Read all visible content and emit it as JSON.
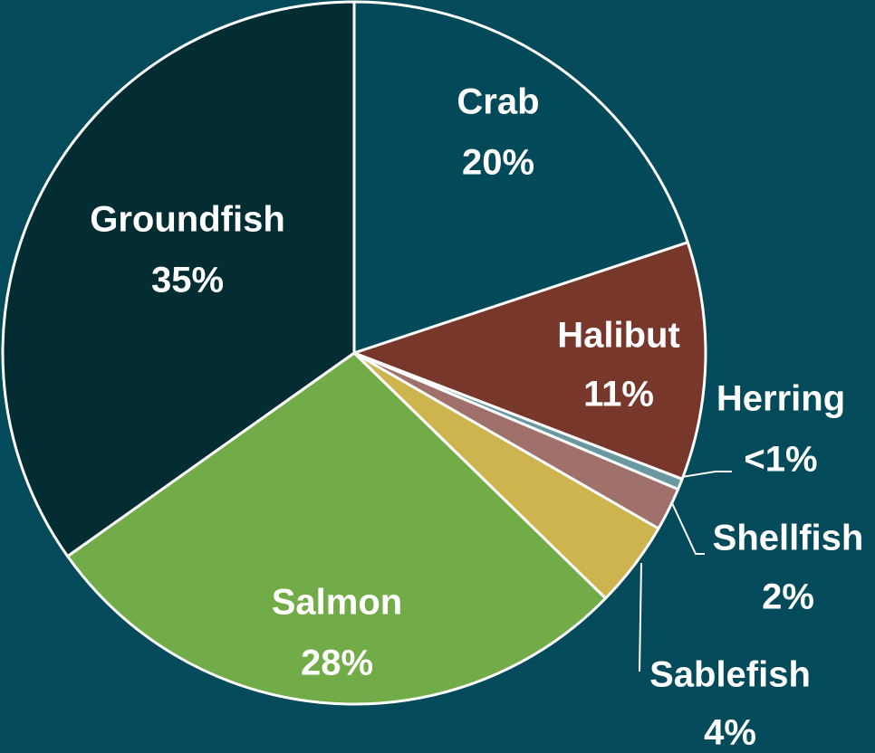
{
  "chart_data": {
    "type": "pie",
    "categories": [
      "Crab",
      "Halibut",
      "Herring",
      "Shellfish",
      "Sablefish",
      "Salmon",
      "Groundfish"
    ],
    "values": [
      20,
      11,
      0.5,
      2,
      4,
      28,
      35
    ],
    "value_labels": [
      "20%",
      "11%",
      "<1%",
      "2%",
      "4%",
      "28%",
      "35%"
    ],
    "colors": [
      "#024a5a",
      "#77372a",
      "#6a98a0",
      "#a0706a",
      "#cdb44e",
      "#72ac48",
      "#032c33"
    ]
  }
}
